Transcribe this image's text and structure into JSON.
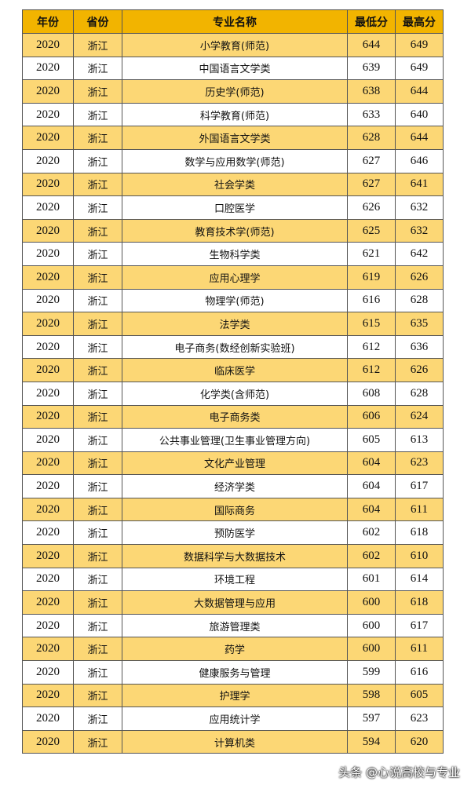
{
  "table": {
    "header": [
      "年份",
      "省份",
      "专业名称",
      "最低分",
      "最高分"
    ],
    "rows": [
      [
        "2020",
        "浙江",
        "小学教育(师范)",
        "644",
        "649"
      ],
      [
        "2020",
        "浙江",
        "中国语言文学类",
        "639",
        "649"
      ],
      [
        "2020",
        "浙江",
        "历史学(师范)",
        "638",
        "644"
      ],
      [
        "2020",
        "浙江",
        "科学教育(师范)",
        "633",
        "640"
      ],
      [
        "2020",
        "浙江",
        "外国语言文学类",
        "628",
        "644"
      ],
      [
        "2020",
        "浙江",
        "数学与应用数学(师范)",
        "627",
        "646"
      ],
      [
        "2020",
        "浙江",
        "社会学类",
        "627",
        "641"
      ],
      [
        "2020",
        "浙江",
        "口腔医学",
        "626",
        "632"
      ],
      [
        "2020",
        "浙江",
        "教育技术学(师范)",
        "625",
        "632"
      ],
      [
        "2020",
        "浙江",
        "生物科学类",
        "621",
        "642"
      ],
      [
        "2020",
        "浙江",
        "应用心理学",
        "619",
        "626"
      ],
      [
        "2020",
        "浙江",
        "物理学(师范)",
        "616",
        "628"
      ],
      [
        "2020",
        "浙江",
        "法学类",
        "615",
        "635"
      ],
      [
        "2020",
        "浙江",
        "电子商务(数经创新实验班)",
        "612",
        "636"
      ],
      [
        "2020",
        "浙江",
        "临床医学",
        "612",
        "626"
      ],
      [
        "2020",
        "浙江",
        "化学类(含师范)",
        "608",
        "628"
      ],
      [
        "2020",
        "浙江",
        "电子商务类",
        "606",
        "624"
      ],
      [
        "2020",
        "浙江",
        "公共事业管理(卫生事业管理方向)",
        "605",
        "613"
      ],
      [
        "2020",
        "浙江",
        "文化产业管理",
        "604",
        "623"
      ],
      [
        "2020",
        "浙江",
        "经济学类",
        "604",
        "617"
      ],
      [
        "2020",
        "浙江",
        "国际商务",
        "604",
        "611"
      ],
      [
        "2020",
        "浙江",
        "预防医学",
        "602",
        "618"
      ],
      [
        "2020",
        "浙江",
        "数据科学与大数据技术",
        "602",
        "610"
      ],
      [
        "2020",
        "浙江",
        "环境工程",
        "601",
        "614"
      ],
      [
        "2020",
        "浙江",
        "大数据管理与应用",
        "600",
        "618"
      ],
      [
        "2020",
        "浙江",
        "旅游管理类",
        "600",
        "617"
      ],
      [
        "2020",
        "浙江",
        "药学",
        "600",
        "611"
      ],
      [
        "2020",
        "浙江",
        "健康服务与管理",
        "599",
        "616"
      ],
      [
        "2020",
        "浙江",
        "护理学",
        "598",
        "605"
      ],
      [
        "2020",
        "浙江",
        "应用统计学",
        "597",
        "623"
      ],
      [
        "2020",
        "浙江",
        "计算机类",
        "594",
        "620"
      ]
    ]
  },
  "watermark": "头条 @心说高校与专业"
}
